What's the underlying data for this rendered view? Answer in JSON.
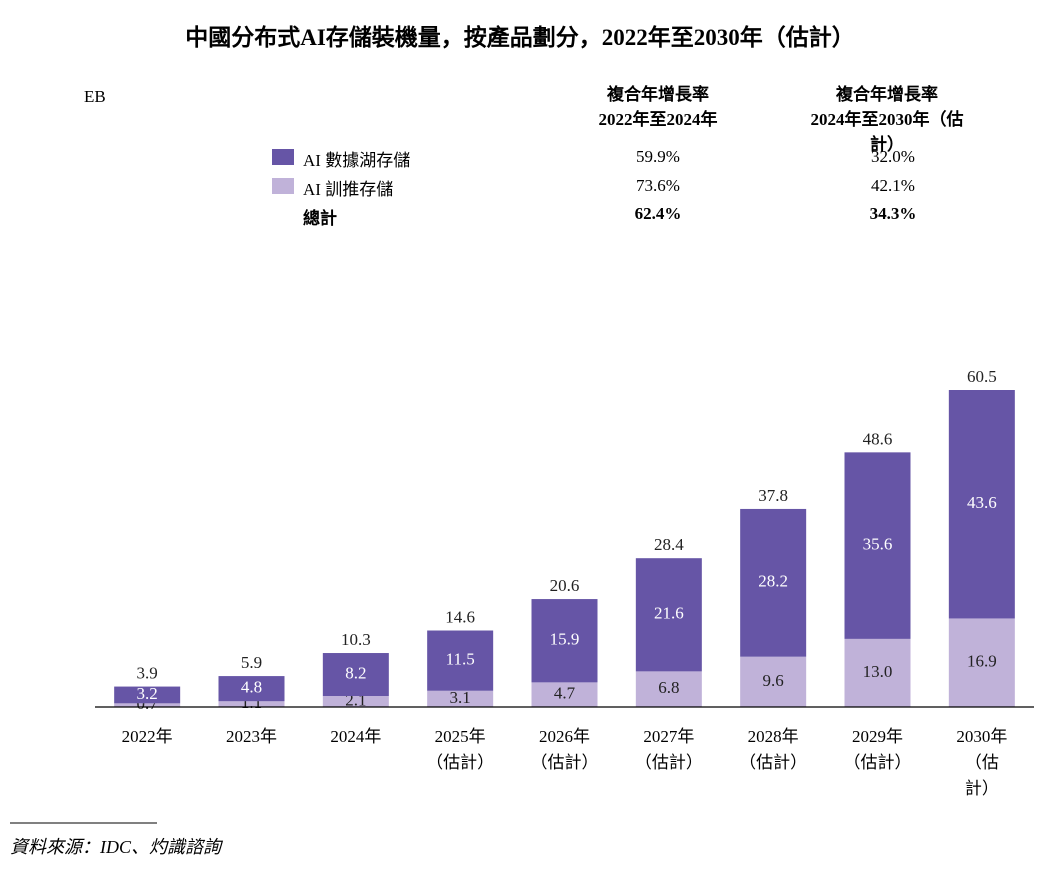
{
  "chart_data": {
    "type": "stacked_bar",
    "title": "中國分布式AI存儲裝機量，按產品劃分，2022年至2030年（估計）",
    "y_label": "EB",
    "categories": [
      "2022年",
      "2023年",
      "2024年",
      "2025年\n（估計）",
      "2026年\n（估計）",
      "2027年\n（估計）",
      "2028年\n（估計）",
      "2029年\n（估計）",
      "2030年\n（估計）"
    ],
    "series": [
      {
        "name": "AI 訓推存儲",
        "color": "#c0b2d9",
        "text_color": "#222222",
        "values": [
          0.7,
          1.1,
          2.1,
          3.1,
          4.7,
          6.8,
          9.6,
          13.0,
          16.9
        ],
        "value_labels": [
          "0.7",
          "1.1",
          "2.1",
          "3.1",
          "4.7",
          "6.8",
          "9.6",
          "13.0",
          "16.9"
        ],
        "cagr": [
          "73.6%",
          "42.1%"
        ]
      },
      {
        "name": "AI 數據湖存儲",
        "color": "#6655a6",
        "text_color": "#ffffff",
        "values": [
          3.2,
          4.8,
          8.2,
          11.5,
          15.9,
          21.6,
          28.2,
          35.6,
          43.6
        ],
        "cagr": [
          "59.9%",
          "32.0%"
        ]
      }
    ],
    "totals": [
      3.9,
      5.9,
      10.3,
      14.6,
      20.6,
      28.4,
      37.8,
      48.6,
      60.5
    ],
    "cagr_headers": [
      "複合年增長率\n2022年至2024年",
      "複合年增長率\n2024年至2030年（估計）"
    ],
    "total_label": "總計",
    "total_cagr": [
      "62.4%",
      "34.3%"
    ],
    "source": "資料來源：IDC、灼識諮詢"
  }
}
